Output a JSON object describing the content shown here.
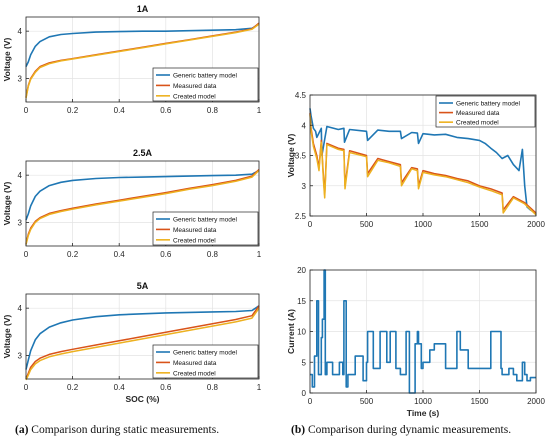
{
  "colors": {
    "generic": "#1f77b4",
    "measured": "#d95319",
    "created": "#edb120"
  },
  "legend_labels": [
    "Generic battery model",
    "Measured data",
    "Created model"
  ],
  "captions": {
    "a_label": "(a)",
    "a_text": " Comparison during static measurements.",
    "b_label": "(b)",
    "b_text": " Comparison during dynamic measurements."
  },
  "chart_data": [
    {
      "type": "line",
      "title": "1A",
      "xlabel": "",
      "ylabel": "Voltage (V)",
      "xlim": [
        0,
        1
      ],
      "ylim": [
        2.5,
        4.3
      ],
      "xticks": [
        0,
        0.2,
        0.4,
        0.6,
        0.8,
        1
      ],
      "yticks": [
        3,
        4
      ],
      "grid": true,
      "legend": "bottom-right",
      "series": [
        {
          "name": "Generic battery model",
          "x": [
            0,
            0.01,
            0.02,
            0.04,
            0.06,
            0.1,
            0.15,
            0.2,
            0.3,
            0.4,
            0.5,
            0.6,
            0.7,
            0.8,
            0.9,
            0.97,
            1
          ],
          "y": [
            3.25,
            3.35,
            3.5,
            3.68,
            3.78,
            3.88,
            3.93,
            3.95,
            3.98,
            3.99,
            4.0,
            4.0,
            4.01,
            4.02,
            4.03,
            4.06,
            4.15
          ]
        },
        {
          "name": "Measured data",
          "x": [
            0,
            0.01,
            0.02,
            0.04,
            0.06,
            0.1,
            0.15,
            0.2,
            0.3,
            0.4,
            0.5,
            0.6,
            0.7,
            0.8,
            0.9,
            0.97,
            1
          ],
          "y": [
            2.6,
            2.85,
            3.0,
            3.15,
            3.25,
            3.33,
            3.38,
            3.42,
            3.5,
            3.58,
            3.66,
            3.74,
            3.82,
            3.9,
            3.98,
            4.05,
            4.17
          ]
        },
        {
          "name": "Created model",
          "x": [
            0,
            0.01,
            0.02,
            0.04,
            0.06,
            0.1,
            0.15,
            0.2,
            0.3,
            0.4,
            0.5,
            0.6,
            0.7,
            0.8,
            0.9,
            0.97,
            1
          ],
          "y": [
            2.58,
            2.83,
            2.98,
            3.13,
            3.23,
            3.31,
            3.37,
            3.41,
            3.49,
            3.57,
            3.65,
            3.73,
            3.81,
            3.89,
            3.97,
            4.04,
            4.15
          ]
        }
      ]
    },
    {
      "type": "line",
      "title": "2.5A",
      "xlabel": "",
      "ylabel": "Voltage (V)",
      "xlim": [
        0,
        1
      ],
      "ylim": [
        2.5,
        4.3
      ],
      "xticks": [
        0,
        0.2,
        0.4,
        0.6,
        0.8,
        1
      ],
      "yticks": [
        3,
        4
      ],
      "grid": true,
      "legend": "bottom-right",
      "series": [
        {
          "name": "Generic battery model",
          "x": [
            0,
            0.01,
            0.02,
            0.04,
            0.06,
            0.1,
            0.15,
            0.2,
            0.3,
            0.4,
            0.5,
            0.6,
            0.7,
            0.8,
            0.9,
            0.97,
            1
          ],
          "y": [
            3.05,
            3.18,
            3.35,
            3.55,
            3.66,
            3.78,
            3.85,
            3.89,
            3.93,
            3.95,
            3.96,
            3.97,
            3.98,
            3.99,
            4.0,
            4.02,
            4.1
          ]
        },
        {
          "name": "Measured data",
          "x": [
            0,
            0.01,
            0.02,
            0.04,
            0.06,
            0.1,
            0.15,
            0.2,
            0.3,
            0.4,
            0.5,
            0.6,
            0.7,
            0.8,
            0.9,
            0.97,
            1
          ],
          "y": [
            2.55,
            2.75,
            2.88,
            3.02,
            3.1,
            3.19,
            3.25,
            3.3,
            3.39,
            3.47,
            3.55,
            3.63,
            3.72,
            3.8,
            3.89,
            3.98,
            4.12
          ]
        },
        {
          "name": "Created model",
          "x": [
            0,
            0.01,
            0.02,
            0.04,
            0.06,
            0.1,
            0.15,
            0.2,
            0.3,
            0.4,
            0.5,
            0.6,
            0.7,
            0.8,
            0.9,
            0.97,
            1
          ],
          "y": [
            2.53,
            2.72,
            2.85,
            3.0,
            3.08,
            3.17,
            3.23,
            3.28,
            3.37,
            3.45,
            3.53,
            3.61,
            3.7,
            3.78,
            3.87,
            3.96,
            4.1
          ]
        }
      ]
    },
    {
      "type": "line",
      "title": "5A",
      "xlabel": "SOC (%)",
      "ylabel": "Voltage (V)",
      "xlim": [
        0,
        1
      ],
      "ylim": [
        2.5,
        4.3
      ],
      "xticks": [
        0,
        0.2,
        0.4,
        0.6,
        0.8,
        1
      ],
      "yticks": [
        3,
        4
      ],
      "grid": true,
      "legend": "bottom-right",
      "series": [
        {
          "name": "Generic battery model",
          "x": [
            0,
            0.01,
            0.02,
            0.04,
            0.06,
            0.1,
            0.15,
            0.2,
            0.3,
            0.4,
            0.5,
            0.6,
            0.7,
            0.8,
            0.9,
            0.97,
            1
          ],
          "y": [
            2.7,
            2.9,
            3.1,
            3.33,
            3.46,
            3.6,
            3.69,
            3.75,
            3.82,
            3.86,
            3.88,
            3.9,
            3.91,
            3.92,
            3.93,
            3.95,
            4.05
          ]
        },
        {
          "name": "Measured data",
          "x": [
            0,
            0.01,
            0.02,
            0.04,
            0.06,
            0.1,
            0.15,
            0.2,
            0.3,
            0.4,
            0.5,
            0.6,
            0.7,
            0.8,
            0.9,
            0.97,
            1
          ],
          "y": [
            2.5,
            2.62,
            2.75,
            2.87,
            2.94,
            3.02,
            3.08,
            3.13,
            3.22,
            3.31,
            3.4,
            3.49,
            3.58,
            3.67,
            3.76,
            3.84,
            4.05
          ]
        },
        {
          "name": "Created model",
          "x": [
            0,
            0.01,
            0.02,
            0.04,
            0.06,
            0.1,
            0.15,
            0.2,
            0.3,
            0.4,
            0.5,
            0.6,
            0.7,
            0.8,
            0.9,
            0.97,
            1
          ],
          "y": [
            2.48,
            2.58,
            2.7,
            2.82,
            2.89,
            2.97,
            3.03,
            3.08,
            3.17,
            3.26,
            3.35,
            3.44,
            3.53,
            3.62,
            3.71,
            3.79,
            4.0
          ]
        }
      ]
    },
    {
      "type": "line",
      "title": "",
      "xlabel": "",
      "ylabel": "Voltage (V)",
      "xlim": [
        0,
        2000
      ],
      "ylim": [
        2.5,
        4.5
      ],
      "xticks": [
        0,
        500,
        1000,
        1500,
        2000
      ],
      "yticks": [
        2.5,
        3,
        3.5,
        4,
        4.5
      ],
      "grid": true,
      "legend": "top-right",
      "series": [
        {
          "name": "Generic battery model",
          "x": [
            0,
            10,
            30,
            50,
            60,
            100,
            105,
            150,
            250,
            300,
            305,
            350,
            500,
            510,
            600,
            700,
            800,
            810,
            900,
            950,
            960,
            1000,
            1100,
            1200,
            1300,
            1400,
            1500,
            1550,
            1600,
            1650,
            1700,
            1750,
            1800,
            1850,
            1880,
            1900,
            1920,
            1950,
            2000
          ],
          "y": [
            4.28,
            4.15,
            3.95,
            3.9,
            3.8,
            3.95,
            3.5,
            3.98,
            3.93,
            3.95,
            3.72,
            3.93,
            3.9,
            3.75,
            3.92,
            3.9,
            3.9,
            3.78,
            3.88,
            3.87,
            3.7,
            3.86,
            3.84,
            3.85,
            3.8,
            3.78,
            3.75,
            3.7,
            3.62,
            3.55,
            3.45,
            3.5,
            3.35,
            3.25,
            3.6,
            3.0,
            2.65,
            2.6,
            2.55
          ]
        },
        {
          "name": "Measured data",
          "x": [
            0,
            10,
            30,
            60,
            80,
            100,
            120,
            130,
            150,
            250,
            300,
            310,
            350,
            500,
            510,
            600,
            700,
            800,
            810,
            900,
            950,
            960,
            1000,
            1100,
            1200,
            1300,
            1400,
            1500,
            1600,
            1700,
            1710,
            1800,
            1900,
            2000
          ],
          "y": [
            4.2,
            3.95,
            3.7,
            3.5,
            3.3,
            3.75,
            3.1,
            2.85,
            3.7,
            3.62,
            3.6,
            3.0,
            3.58,
            3.5,
            3.2,
            3.45,
            3.4,
            3.35,
            3.05,
            3.3,
            3.28,
            3.0,
            3.25,
            3.2,
            3.17,
            3.12,
            3.08,
            3.0,
            2.95,
            2.88,
            2.6,
            2.82,
            2.72,
            2.55
          ]
        },
        {
          "name": "Created model",
          "x": [
            0,
            10,
            30,
            60,
            80,
            100,
            120,
            130,
            150,
            250,
            300,
            310,
            350,
            500,
            510,
            600,
            700,
            800,
            810,
            900,
            950,
            960,
            1000,
            1100,
            1200,
            1300,
            1400,
            1500,
            1600,
            1700,
            1710,
            1800,
            1900,
            2000
          ],
          "y": [
            4.18,
            3.9,
            3.65,
            3.45,
            3.25,
            3.72,
            3.05,
            2.8,
            3.68,
            3.6,
            3.58,
            2.95,
            3.55,
            3.48,
            3.15,
            3.42,
            3.38,
            3.32,
            3.0,
            3.28,
            3.25,
            2.95,
            3.22,
            3.18,
            3.15,
            3.1,
            3.05,
            2.98,
            2.92,
            2.85,
            2.55,
            2.8,
            2.7,
            2.52
          ]
        }
      ]
    },
    {
      "type": "line",
      "title": "",
      "xlabel": "Time (s)",
      "ylabel": "Current (A)",
      "xlim": [
        0,
        2000
      ],
      "ylim": [
        0,
        20
      ],
      "xticks": [
        0,
        500,
        1000,
        1500,
        2000
      ],
      "yticks": [
        0,
        5,
        10,
        15,
        20
      ],
      "grid": true,
      "legend": "",
      "series": [
        {
          "name": "Generic battery model",
          "x": [
            0,
            20,
            20,
            40,
            40,
            60,
            60,
            75,
            75,
            100,
            100,
            110,
            110,
            125,
            125,
            135,
            135,
            150,
            150,
            200,
            200,
            260,
            260,
            290,
            290,
            300,
            300,
            320,
            320,
            335,
            335,
            400,
            400,
            470,
            470,
            500,
            500,
            510,
            510,
            560,
            560,
            620,
            620,
            680,
            680,
            710,
            710,
            760,
            760,
            800,
            800,
            850,
            850,
            880,
            880,
            930,
            930,
            950,
            950,
            960,
            960,
            985,
            985,
            1000,
            1000,
            1060,
            1060,
            1100,
            1100,
            1200,
            1200,
            1300,
            1300,
            1330,
            1330,
            1400,
            1400,
            1500,
            1500,
            1600,
            1600,
            1690,
            1690,
            1700,
            1700,
            1760,
            1760,
            1800,
            1800,
            1830,
            1830,
            1880,
            1880,
            1900,
            1900,
            1920,
            1920,
            1950,
            1950,
            2000
          ],
          "y": [
            3,
            3,
            1,
            1,
            6,
            6,
            15,
            15,
            3,
            3,
            9,
            9,
            12,
            12,
            20,
            20,
            3,
            3,
            5,
            5,
            3,
            3,
            5,
            5,
            3,
            3,
            15,
            15,
            1,
            1,
            3,
            3,
            6,
            6,
            2,
            2,
            5,
            5,
            10,
            10,
            4,
            4,
            10,
            10,
            5,
            5,
            10,
            10,
            4,
            4,
            3,
            3,
            10,
            10,
            0,
            0,
            8,
            8,
            10,
            10,
            8,
            8,
            4,
            4,
            5,
            5,
            7,
            7,
            8,
            8,
            4,
            4,
            10,
            10,
            7,
            7,
            4,
            4,
            4,
            4,
            10,
            10,
            4,
            4,
            3,
            3,
            4,
            4,
            3,
            3,
            2,
            2,
            5,
            5,
            3,
            3,
            2,
            2,
            2.5,
            2.5
          ]
        }
      ]
    }
  ]
}
